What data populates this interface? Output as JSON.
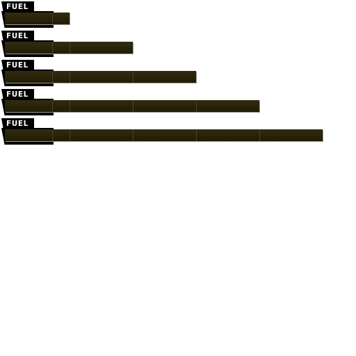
{
  "gauges": [
    {
      "label": "FUEL",
      "level": 1
    },
    {
      "label": "FUEL",
      "level": 2
    },
    {
      "label": "FUEL",
      "level": 3
    },
    {
      "label": "FUEL",
      "level": 4
    },
    {
      "label": "FUEL",
      "level": 5
    }
  ],
  "colors": {
    "tab": "#000000",
    "label": "#ffffff",
    "bar": "#2a2409",
    "background": "#ffffff"
  }
}
